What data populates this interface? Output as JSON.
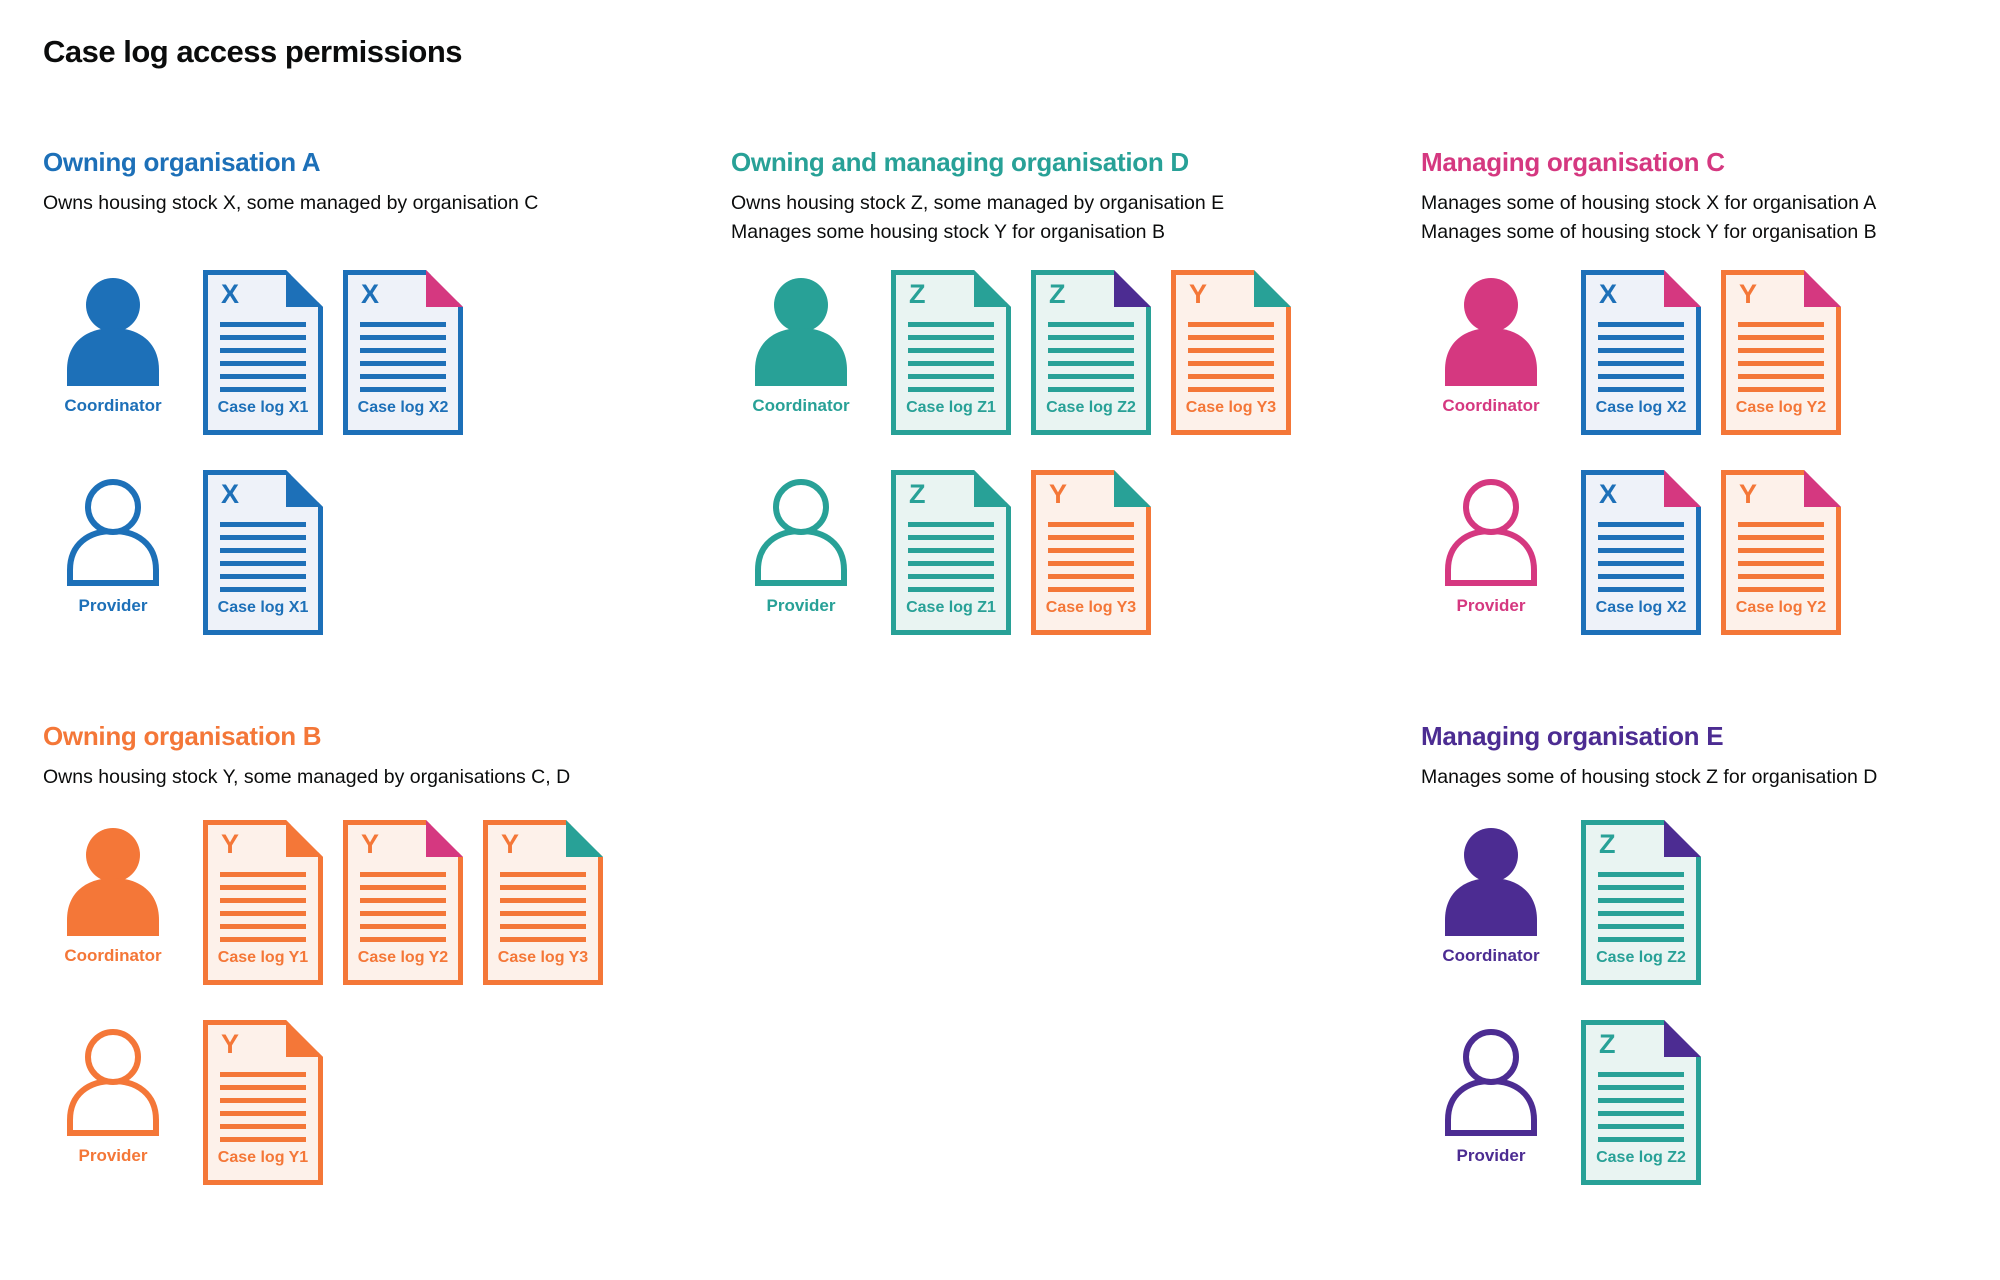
{
  "page": {
    "title": "Case log access permissions",
    "background": "#ffffff"
  },
  "colors": {
    "blue": "#1d70b8",
    "teal": "#28a197",
    "pink": "#d53880",
    "orange": "#f47738",
    "purple": "#4c2c92",
    "text": "#0b0c0c"
  },
  "doc_fills": {
    "blue": "#eef2f9",
    "teal": "#e9f4f2",
    "orange": "#fdf1ea"
  },
  "roles": {
    "coordinator": "Coordinator",
    "provider": "Provider"
  },
  "sections": [
    {
      "id": "org-a",
      "color": "blue",
      "title": "Owning organisation A",
      "description": [
        "Owns housing stock X, some managed by organisation C"
      ],
      "rows": [
        {
          "role": "coordinator",
          "docs": [
            {
              "letter": "X",
              "label": "Case log X1",
              "doc_color": "blue",
              "fold_color": "blue"
            },
            {
              "letter": "X",
              "label": "Case log X2",
              "doc_color": "blue",
              "fold_color": "pink"
            }
          ]
        },
        {
          "role": "provider",
          "docs": [
            {
              "letter": "X",
              "label": "Case log X1",
              "doc_color": "blue",
              "fold_color": "blue"
            }
          ]
        }
      ]
    },
    {
      "id": "org-d",
      "color": "teal",
      "title": "Owning and managing organisation D",
      "description": [
        "Owns housing stock Z, some managed by organisation E",
        "Manages some housing stock Y for organisation B"
      ],
      "rows": [
        {
          "role": "coordinator",
          "docs": [
            {
              "letter": "Z",
              "label": "Case log Z1",
              "doc_color": "teal",
              "fold_color": "teal"
            },
            {
              "letter": "Z",
              "label": "Case log Z2",
              "doc_color": "teal",
              "fold_color": "purple"
            },
            {
              "letter": "Y",
              "label": "Case log Y3",
              "doc_color": "orange",
              "fold_color": "teal"
            }
          ]
        },
        {
          "role": "provider",
          "docs": [
            {
              "letter": "Z",
              "label": "Case log Z1",
              "doc_color": "teal",
              "fold_color": "teal"
            },
            {
              "letter": "Y",
              "label": "Case log Y3",
              "doc_color": "orange",
              "fold_color": "teal"
            }
          ]
        }
      ]
    },
    {
      "id": "org-c",
      "color": "pink",
      "title": "Managing organisation C",
      "description": [
        "Manages some of housing stock X for organisation A",
        "Manages some of housing stock Y for organisation B"
      ],
      "rows": [
        {
          "role": "coordinator",
          "docs": [
            {
              "letter": "X",
              "label": "Case log X2",
              "doc_color": "blue",
              "fold_color": "pink"
            },
            {
              "letter": "Y",
              "label": "Case log Y2",
              "doc_color": "orange",
              "fold_color": "pink"
            }
          ]
        },
        {
          "role": "provider",
          "docs": [
            {
              "letter": "X",
              "label": "Case log X2",
              "doc_color": "blue",
              "fold_color": "pink"
            },
            {
              "letter": "Y",
              "label": "Case log Y2",
              "doc_color": "orange",
              "fold_color": "pink"
            }
          ]
        }
      ]
    },
    {
      "id": "org-b",
      "color": "orange",
      "title": "Owning organisation B",
      "description": [
        "Owns housing stock Y, some managed by organisations C, D"
      ],
      "rows": [
        {
          "role": "coordinator",
          "docs": [
            {
              "letter": "Y",
              "label": "Case log Y1",
              "doc_color": "orange",
              "fold_color": "orange"
            },
            {
              "letter": "Y",
              "label": "Case log Y2",
              "doc_color": "orange",
              "fold_color": "pink"
            },
            {
              "letter": "Y",
              "label": "Case log Y3",
              "doc_color": "orange",
              "fold_color": "teal"
            }
          ]
        },
        {
          "role": "provider",
          "docs": [
            {
              "letter": "Y",
              "label": "Case log Y1",
              "doc_color": "orange",
              "fold_color": "orange"
            }
          ]
        }
      ]
    },
    {
      "id": "org-e",
      "color": "purple",
      "title": "Managing organisation E",
      "description": [
        "Manages some of housing stock Z for organisation D"
      ],
      "rows": [
        {
          "role": "coordinator",
          "docs": [
            {
              "letter": "Z",
              "label": "Case log Z2",
              "doc_color": "teal",
              "fold_color": "purple"
            }
          ]
        },
        {
          "role": "provider",
          "docs": [
            {
              "letter": "Z",
              "label": "Case log Z2",
              "doc_color": "teal",
              "fold_color": "purple"
            }
          ]
        }
      ]
    }
  ]
}
